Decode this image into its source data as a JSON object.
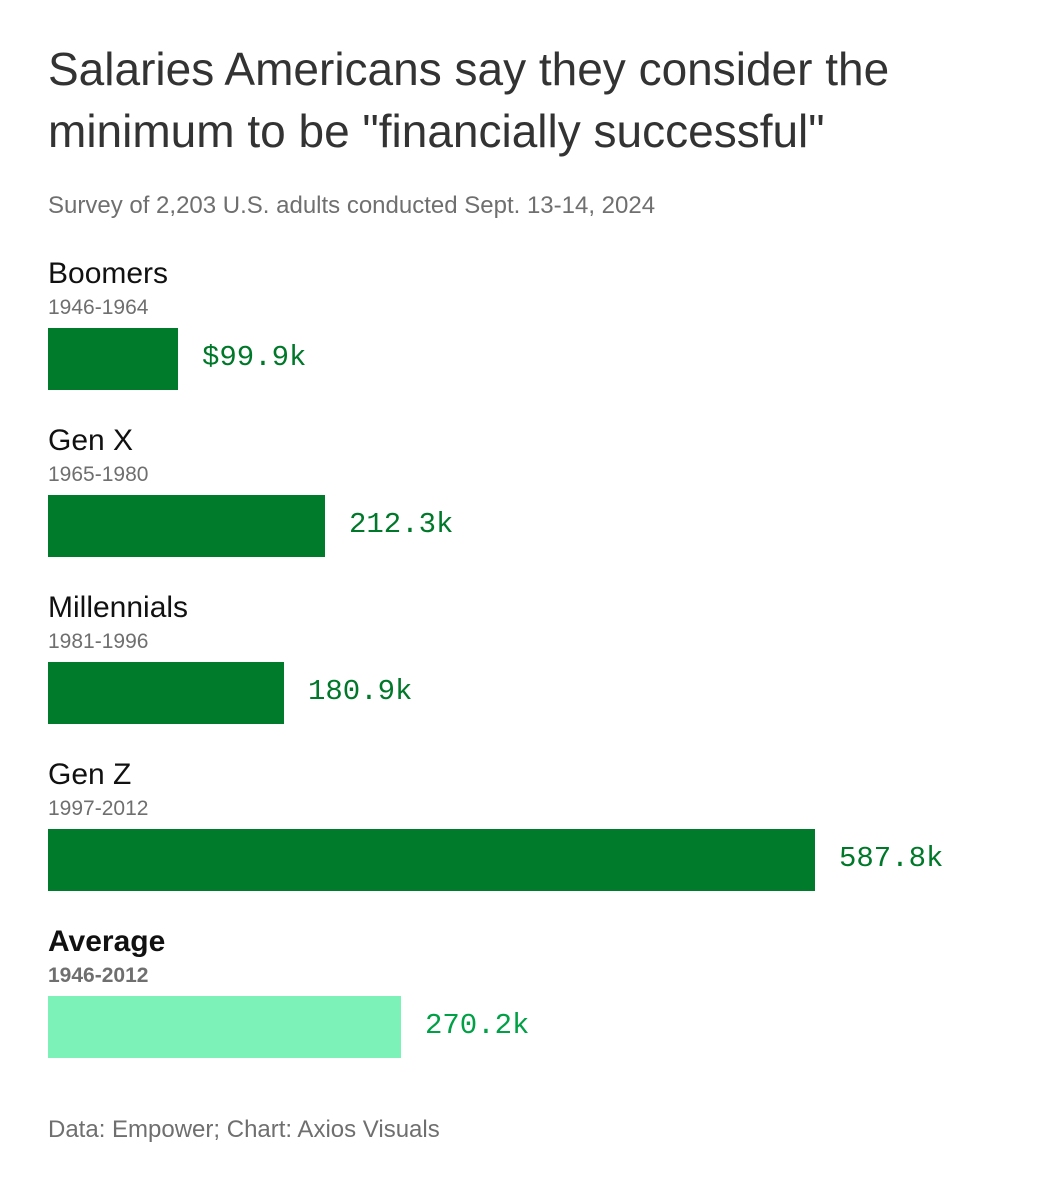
{
  "chart_data": {
    "type": "bar",
    "orientation": "horizontal",
    "title": "Salaries Americans say they consider the minimum to be \"financially successful\"",
    "subtitle": "Survey of 2,203 U.S. adults conducted Sept. 13-14, 2024",
    "categories": [
      "Boomers",
      "Gen X",
      "Millennials",
      "Gen Z",
      "Average"
    ],
    "year_ranges": [
      "1946-1964",
      "1965-1980",
      "1981-1996",
      "1997-2012",
      "1946-2012"
    ],
    "values": [
      99.9,
      212.3,
      180.9,
      587.8,
      270.2
    ],
    "value_labels": [
      "$99.9k",
      "212.3k",
      "180.9k",
      "587.8k",
      "270.2k"
    ],
    "unit": "thousands of US dollars",
    "colors": [
      "#007a2b",
      "#007a2b",
      "#007a2b",
      "#007a2b",
      "#7cf2b9"
    ],
    "value_label_colors": [
      "#00782a",
      "#00782a",
      "#00782a",
      "#00782a",
      "#00a046"
    ],
    "xlim": [
      0,
      587.8
    ],
    "grid": false,
    "source": "Data: Empower; Chart: Axios Visuals"
  }
}
